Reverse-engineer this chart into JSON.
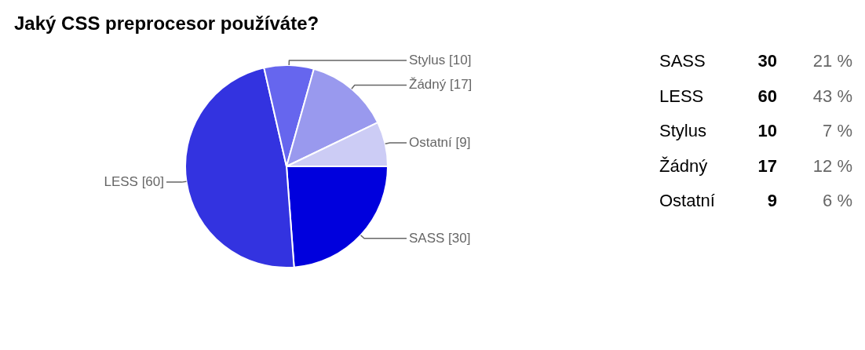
{
  "chart_data": [
    {
      "type": "pie",
      "title": "Jaký CSS preprocesor používáte?",
      "categories": [
        "SASS",
        "LESS",
        "Stylus",
        "Žádný",
        "Ostatní"
      ],
      "values": [
        30,
        60,
        10,
        17,
        9
      ],
      "colors": [
        "#0000dd",
        "#3333e0",
        "#6666ee",
        "#9999ee",
        "#ccccf5"
      ],
      "value_labels": [
        "[30]",
        "[60]",
        "[10]",
        "[17]",
        "[9]"
      ]
    },
    {
      "type": "other",
      "annotations": [
        "SASS",
        "30",
        "21 %",
        "LESS",
        "60",
        "43 %",
        "Stylus",
        "10",
        "7 %",
        "Žádný",
        "17",
        "12 %",
        "Ostatní",
        "9",
        "6 %"
      ]
    }
  ]
}
